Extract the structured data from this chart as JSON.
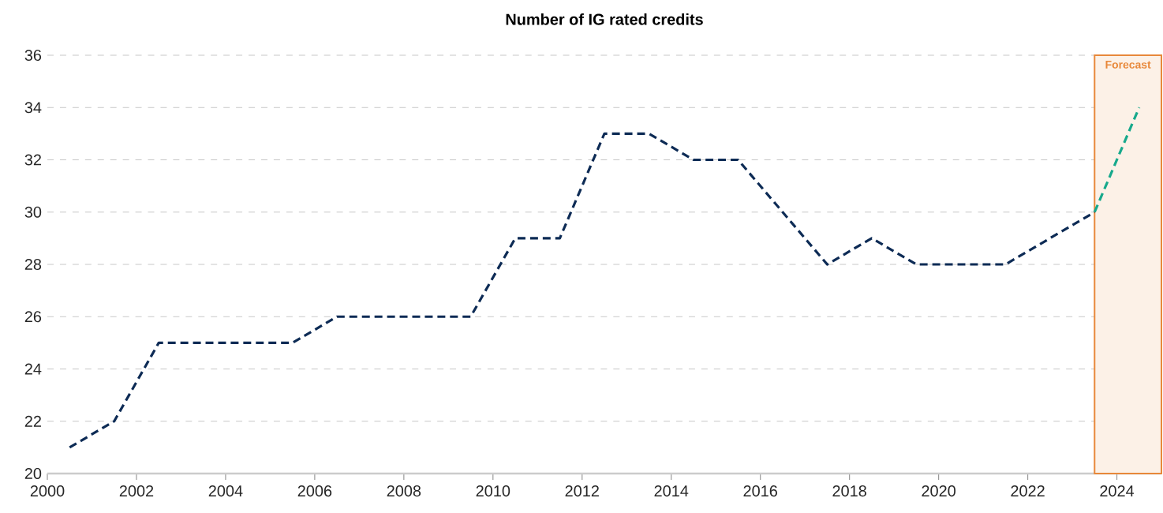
{
  "chart_data": {
    "type": "line",
    "title": "Number of IG rated credits",
    "series": [
      {
        "color": "#0d2b55",
        "x": [
          2000.5,
          2001.5,
          2002.5,
          2003.5,
          2004.5,
          2005.5,
          2006.5,
          2007.5,
          2008.5,
          2009.5,
          2010.5,
          2011.5,
          2012.5,
          2013.5,
          2014.5,
          2015.5,
          2016.5,
          2017.5,
          2018.5,
          2019.5,
          2020.5,
          2021.5,
          2022.5,
          2023.5
        ],
        "values": [
          21,
          22,
          25,
          25,
          25,
          25,
          26,
          26,
          26,
          26,
          29,
          29,
          33,
          33,
          32,
          32,
          30,
          28,
          29,
          28,
          28,
          28,
          29,
          30
        ]
      },
      {
        "color": "#17a98c",
        "x": [
          2023.5,
          2024.5
        ],
        "values": [
          30,
          34
        ]
      }
    ],
    "xlim": [
      2000,
      2025
    ],
    "ylim": [
      20,
      36
    ],
    "xticks": [
      2000,
      2002,
      2004,
      2006,
      2008,
      2010,
      2012,
      2014,
      2016,
      2018,
      2020,
      2022,
      2024
    ],
    "yticks": [
      20,
      22,
      24,
      26,
      28,
      30,
      32,
      34,
      36
    ],
    "bands": [
      {
        "axis": "x",
        "from": 2023.5,
        "to": 2025,
        "label": "Forecast",
        "color": "#e8883a"
      }
    ],
    "grid": "y",
    "marker": "none",
    "line_style": "dashed"
  }
}
